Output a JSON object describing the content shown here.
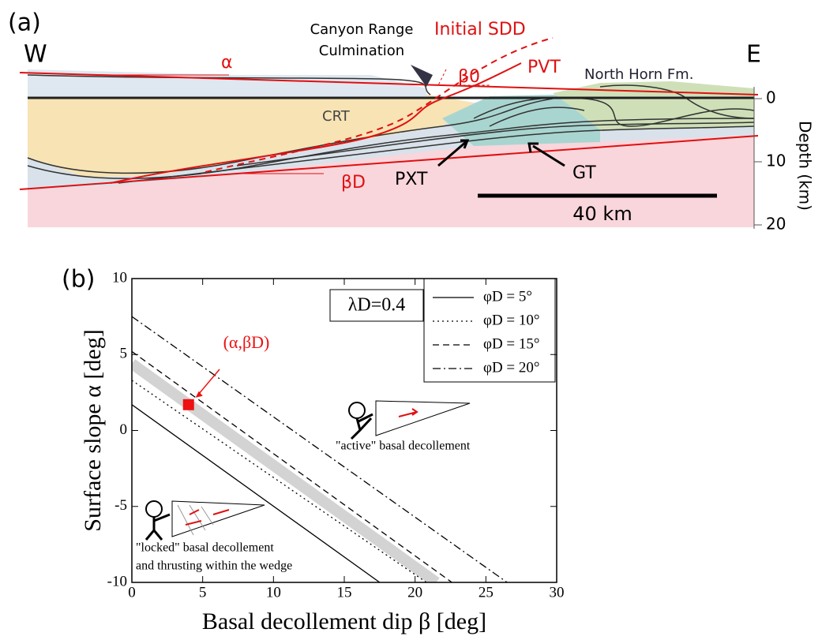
{
  "panel_a": {
    "panel_label": "(a)",
    "west": "W",
    "east": "E",
    "canyon_range_1": "Canyon Range",
    "canyon_range_2": "Culmination",
    "initial_sdd": "Initial SDD",
    "beta0": "β0",
    "pvt": "PVT",
    "north_horn": "North Horn Fm.",
    "alpha": "α",
    "crt": "CRT",
    "betaD": "βD",
    "pxt": "PXT",
    "gt": "GT",
    "scale": "40 km",
    "depth_label": "Depth (km)",
    "depth_ticks": [
      0,
      10,
      20
    ]
  },
  "chart_data": {
    "type": "line",
    "panel_label": "(b)",
    "x_label": "Basal decollement dip β [deg]",
    "y_label": "Surface slope α [deg]",
    "xlim": [
      0,
      30
    ],
    "ylim": [
      -10,
      10
    ],
    "xticks": [
      0,
      5,
      10,
      15,
      20,
      25,
      30
    ],
    "yticks": [
      -10,
      -5,
      0,
      5,
      10
    ],
    "lambda_label": "λD=0.4",
    "series": [
      {
        "name": "φD = 5°",
        "color": "#000000",
        "linestyle": "solid",
        "x": [
          0,
          17.5
        ],
        "values": [
          1.7,
          -10
        ]
      },
      {
        "name": "φD = 10°",
        "color": "#000000",
        "linestyle": "dotted",
        "x": [
          0,
          20.8
        ],
        "values": [
          3.3,
          -10
        ]
      },
      {
        "name": "φD = 15°",
        "color": "#000000",
        "linestyle": "dashed",
        "x": [
          0,
          22.6
        ],
        "values": [
          5.2,
          -10
        ]
      },
      {
        "name": "φD = 20°",
        "color": "#000000",
        "linestyle": "dashdot",
        "x": [
          0,
          26.5
        ],
        "values": [
          7.5,
          -10
        ]
      }
    ],
    "band": {
      "color": "#d3d3d3",
      "x": [
        0,
        21.5
      ],
      "values": [
        4.4,
        -10
      ]
    },
    "point": {
      "x": 4,
      "y": 1.7,
      "label": "(α,βD)",
      "color": "#ee1111"
    },
    "active_label": "\"active\" basal decollement",
    "locked_label_1": "\"locked\" basal decollement",
    "locked_label_2": "and thrusting within the wedge"
  }
}
